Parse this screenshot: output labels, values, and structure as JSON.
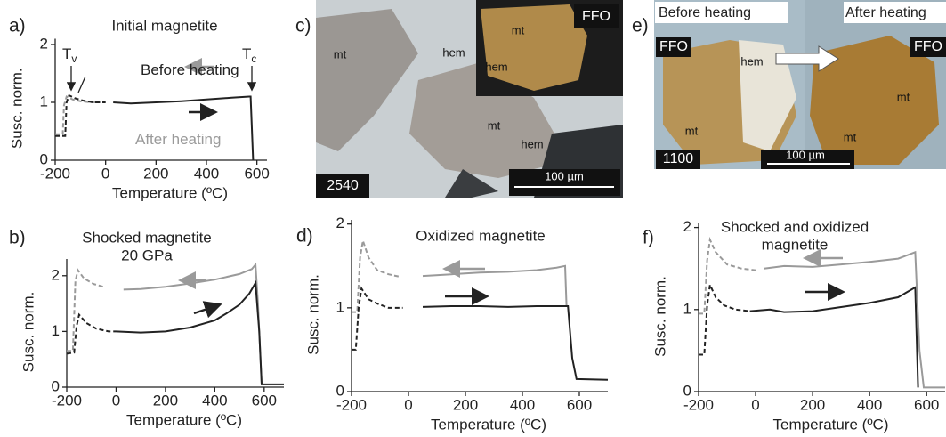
{
  "chart_data": [
    {
      "type": "line",
      "panel": "a)",
      "title": [
        "Initial magnetite"
      ],
      "xlabel": "Temperature (ºC)",
      "ylabel": "Susc. norm.",
      "xlim": [
        -200,
        640
      ],
      "ylim": [
        0,
        2.1
      ],
      "xticks": [
        -200,
        0,
        200,
        400,
        600
      ],
      "yticks": [
        0,
        1,
        2
      ],
      "annotations": [
        {
          "text": "T",
          "sub": "v"
        },
        {
          "text": "T",
          "sub": "c"
        },
        {
          "text": "Before heating",
          "color": "#222222"
        },
        {
          "text": "After heating",
          "color": "#9a9a9a"
        }
      ],
      "series": [
        {
          "color": "#9a9a9a",
          "dash": true,
          "x": [
            -200,
            -170,
            -165,
            -155,
            -130,
            -100,
            -60,
            -20
          ],
          "values": [
            0.45,
            0.45,
            0.95,
            1.1,
            1.05,
            1.02,
            1.0,
            1.0
          ]
        },
        {
          "color": "#222222",
          "dash": true,
          "x": [
            -200,
            -160,
            -155,
            -145,
            -120,
            -90,
            -50,
            0
          ],
          "values": [
            0.42,
            0.42,
            1.0,
            1.12,
            1.07,
            1.03,
            1.0,
            1.0
          ]
        },
        {
          "color": "#222222",
          "dash": false,
          "x": [
            30,
            100,
            200,
            300,
            400,
            500,
            570,
            575,
            585
          ],
          "values": [
            1.0,
            0.98,
            1.0,
            1.02,
            1.05,
            1.08,
            1.1,
            1.1,
            0
          ]
        }
      ]
    },
    {
      "type": "line",
      "panel": "b)",
      "title": [
        "Shocked magnetite",
        "20 GPa"
      ],
      "xlabel": "Temperature (ºC)",
      "ylabel": "Susc. norm.",
      "xlim": [
        -200,
        680
      ],
      "ylim": [
        0,
        2.3
      ],
      "xticks": [
        -200,
        0,
        200,
        400,
        600
      ],
      "yticks": [
        0,
        1,
        2
      ],
      "series": [
        {
          "color": "#9a9a9a",
          "dash": true,
          "x": [
            -200,
            -175,
            -165,
            -155,
            -130,
            -90,
            -50
          ],
          "values": [
            0.65,
            0.65,
            1.9,
            2.1,
            1.95,
            1.85,
            1.8
          ]
        },
        {
          "color": "#9a9a9a",
          "dash": false,
          "x": [
            30,
            100,
            200,
            300,
            400,
            500,
            550,
            565,
            575,
            590
          ],
          "values": [
            1.75,
            1.76,
            1.8,
            1.86,
            1.93,
            2.03,
            2.12,
            2.2,
            1.5,
            0.05
          ]
        },
        {
          "color": "#222222",
          "dash": true,
          "x": [
            -200,
            -170,
            -160,
            -150,
            -120,
            -80,
            -30,
            0
          ],
          "values": [
            0.6,
            0.62,
            1.1,
            1.3,
            1.15,
            1.05,
            1.0,
            1.0
          ]
        },
        {
          "color": "#222222",
          "dash": false,
          "x": [
            0,
            100,
            200,
            300,
            400,
            450,
            500,
            540,
            565,
            580,
            590,
            680
          ],
          "values": [
            1.0,
            0.98,
            1.0,
            1.07,
            1.2,
            1.33,
            1.48,
            1.68,
            1.87,
            1.0,
            0.05,
            0.05
          ]
        }
      ]
    },
    {
      "type": "line",
      "panel": "d)",
      "title": [
        "Oxidized magnetite"
      ],
      "xlabel": "Temperature (ºC)",
      "ylabel": "Susc. norm.",
      "xlim": [
        -200,
        700
      ],
      "ylim": [
        0,
        2.05
      ],
      "xticks": [
        -200,
        0,
        200,
        400,
        600
      ],
      "yticks": [
        0,
        1,
        2
      ],
      "series": [
        {
          "color": "#9a9a9a",
          "dash": true,
          "x": [
            -200,
            -180,
            -170,
            -160,
            -140,
            -110,
            -70,
            -30
          ],
          "values": [
            0.95,
            0.95,
            1.6,
            1.8,
            1.6,
            1.45,
            1.4,
            1.37
          ]
        },
        {
          "color": "#9a9a9a",
          "dash": false,
          "x": [
            50,
            150,
            250,
            350,
            450,
            520,
            550,
            555
          ],
          "values": [
            1.38,
            1.4,
            1.42,
            1.43,
            1.45,
            1.48,
            1.5,
            1.02
          ]
        },
        {
          "color": "#222222",
          "dash": true,
          "x": [
            -200,
            -185,
            -175,
            -165,
            -140,
            -110,
            -70,
            -20
          ],
          "values": [
            0.5,
            0.5,
            1.0,
            1.23,
            1.1,
            1.05,
            1.0,
            1.0
          ]
        },
        {
          "color": "#222222",
          "dash": false,
          "x": [
            50,
            150,
            250,
            350,
            450,
            550,
            560,
            575,
            590,
            700
          ],
          "values": [
            1.01,
            1.02,
            1.02,
            1.01,
            1.02,
            1.02,
            1.02,
            0.4,
            0.15,
            0.14
          ]
        }
      ]
    },
    {
      "type": "line",
      "panel": "f)",
      "title": [
        "Shocked and oxidized",
        "magnetite"
      ],
      "xlabel": "Temperature (ºC)",
      "ylabel": "Susc. norm.",
      "xlim": [
        -200,
        665
      ],
      "ylim": [
        0,
        2.05
      ],
      "xticks": [
        -200,
        0,
        200,
        400,
        600
      ],
      "yticks": [
        0,
        1,
        2
      ],
      "series": [
        {
          "color": "#9a9a9a",
          "dash": true,
          "x": [
            -200,
            -180,
            -170,
            -160,
            -140,
            -100,
            -50,
            0
          ],
          "values": [
            0.95,
            0.95,
            1.6,
            1.85,
            1.7,
            1.55,
            1.5,
            1.48
          ]
        },
        {
          "color": "#222222",
          "dash": true,
          "x": [
            -200,
            -180,
            -170,
            -160,
            -140,
            -110,
            -70,
            -20
          ],
          "values": [
            0.45,
            0.45,
            1.05,
            1.3,
            1.15,
            1.05,
            1.0,
            0.98
          ]
        },
        {
          "color": "#222222",
          "dash": false,
          "x": [
            -20,
            50,
            100,
            200,
            300,
            400,
            500,
            560,
            570
          ],
          "values": [
            0.98,
            1.0,
            0.97,
            0.98,
            1.03,
            1.08,
            1.15,
            1.27,
            0.05
          ]
        },
        {
          "color": "#9a9a9a",
          "dash": false,
          "x": [
            30,
            100,
            200,
            300,
            400,
            500,
            560,
            575,
            590,
            665
          ],
          "values": [
            1.5,
            1.53,
            1.52,
            1.55,
            1.58,
            1.62,
            1.7,
            0.5,
            0.05,
            0.05
          ]
        }
      ]
    }
  ],
  "photos": [
    {
      "panel": "c)",
      "labels": [
        "mt",
        "hem",
        "mt",
        "hem"
      ],
      "inset": {
        "tag": "FFO",
        "labels": [
          "mt",
          "hem"
        ]
      },
      "sample": "2540",
      "scale": "100 µm"
    },
    {
      "panel": "e)",
      "captions": [
        "Before heating",
        "After heating"
      ],
      "tags": [
        "FFO",
        "FFO"
      ],
      "labels": [
        "hem",
        "mt",
        "mt",
        "mt"
      ],
      "sample": "1100",
      "scale": "100 µm"
    }
  ]
}
